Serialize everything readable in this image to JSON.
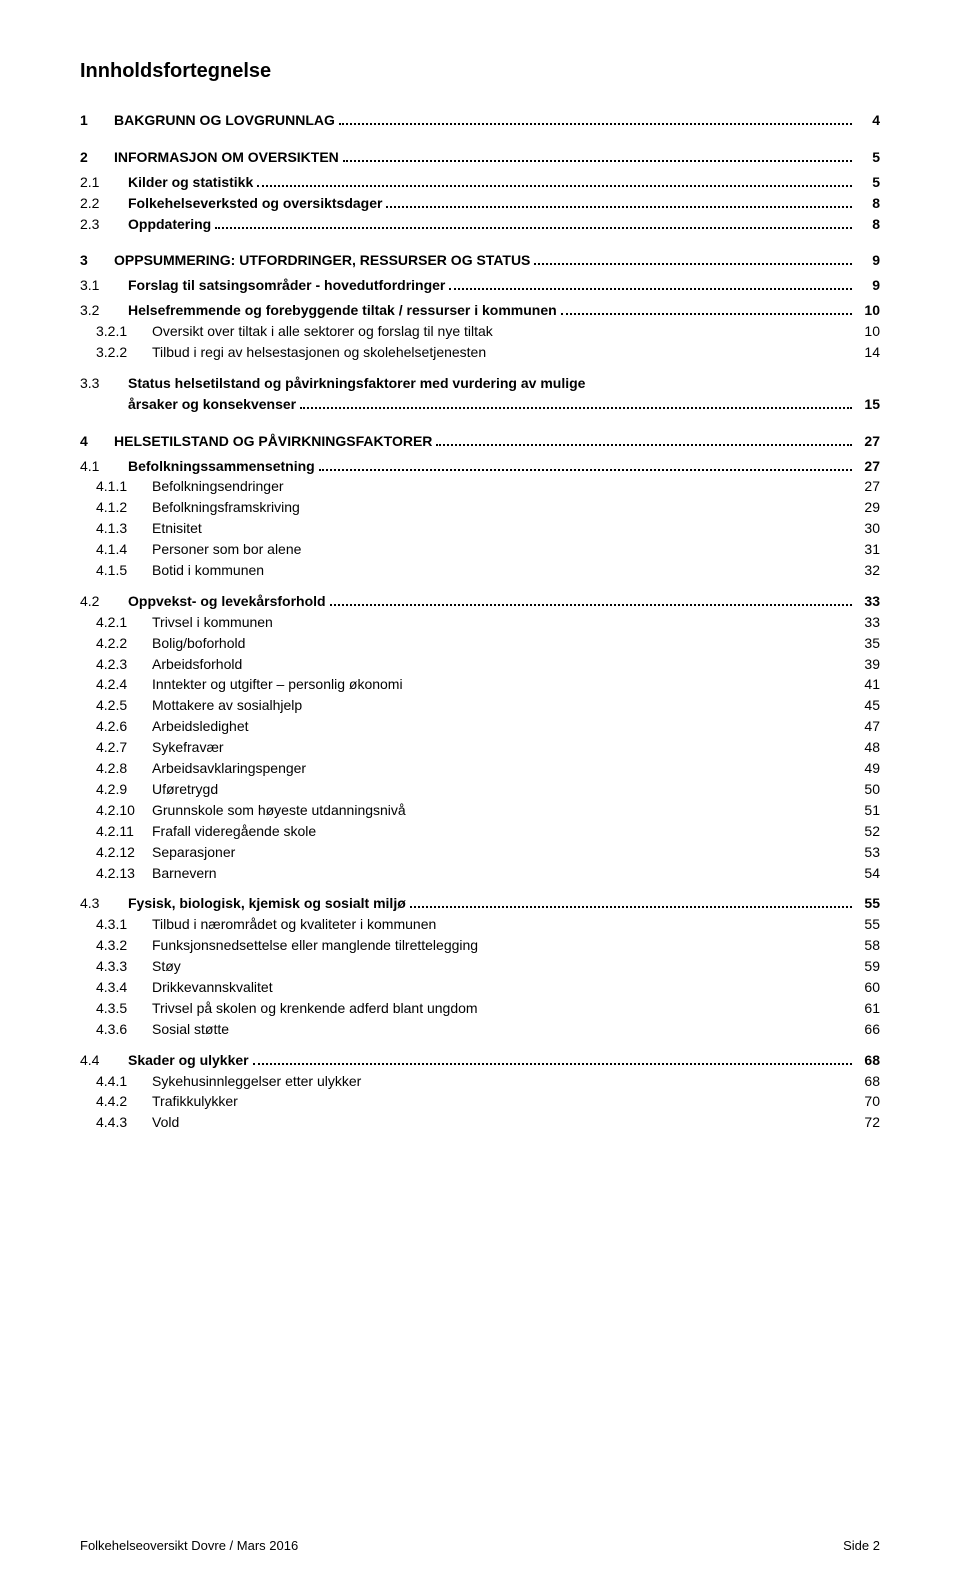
{
  "doc_title": "Innholdsfortegnelse",
  "entries": [
    {
      "level": 1,
      "num": "1",
      "label": "BAKGRUNN OG LOVGRUNNLAG",
      "page": "4",
      "leader": true,
      "bold": true,
      "gap_before": 0,
      "gap_after": 16
    },
    {
      "level": 1,
      "num": "2",
      "label": "INFORMASJON OM OVERSIKTEN",
      "page": "5",
      "leader": true,
      "bold": true,
      "gap_before": 0,
      "gap_after": 4
    },
    {
      "level": 2,
      "num": "2.1",
      "label": "Kilder og statistikk",
      "page": "5",
      "leader": true,
      "bold": true
    },
    {
      "level": 2,
      "num": "2.2",
      "label": "Folkehelseverksted og oversiktsdager",
      "page": "8",
      "leader": true,
      "bold": true
    },
    {
      "level": 2,
      "num": "2.3",
      "label": "Oppdatering",
      "page": "8",
      "leader": true,
      "bold": true,
      "gap_after": 16
    },
    {
      "level": 1,
      "num": "3",
      "label": "OPPSUMMERING: UTFORDRINGER, RESSURSER OG STATUS",
      "page": "9",
      "leader": true,
      "bold": true,
      "gap_after": 4
    },
    {
      "level": 2,
      "num": "3.1",
      "label": "Forslag til satsingsområder - hovedutfordringer",
      "page": "9",
      "leader": true,
      "bold": true,
      "gap_after": 4
    },
    {
      "level": 2,
      "num": "3.2",
      "label": "Helsefremmende og forebyggende tiltak / ressurser i kommunen",
      "page": "10",
      "leader": true,
      "bold": true
    },
    {
      "level": 3,
      "num": "3.2.1",
      "label": "Oversikt over tiltak i alle sektorer og forslag til nye tiltak",
      "page": "10",
      "leader": false
    },
    {
      "level": 3,
      "num": "3.2.2",
      "label": "Tilbud i regi av helsestasjonen og skolehelsetjenesten",
      "page": "14",
      "leader": false,
      "gap_after": 10
    },
    {
      "level": 2,
      "num": "3.3",
      "label": "Status helsetilstand og påvirkningsfaktorer med vurdering av mulige årsaker og konsekvenser",
      "page": "15",
      "leader": true,
      "bold": true,
      "wrap": true,
      "gap_after": 16
    },
    {
      "level": 1,
      "num": "4",
      "label": "HELSETILSTAND OG PÅVIRKNINGSFAKTORER",
      "page": "27",
      "leader": true,
      "bold": true,
      "gap_after": 4
    },
    {
      "level": 2,
      "num": "4.1",
      "label": "Befolkningssammensetning",
      "page": "27",
      "leader": true,
      "bold": true
    },
    {
      "level": 3,
      "num": "4.1.1",
      "label": "Befolkningsendringer",
      "page": "27",
      "leader": false
    },
    {
      "level": 3,
      "num": "4.1.2",
      "label": "Befolkningsframskriving",
      "page": "29",
      "leader": false
    },
    {
      "level": 3,
      "num": "4.1.3",
      "label": "Etnisitet",
      "page": "30",
      "leader": false
    },
    {
      "level": 3,
      "num": "4.1.4",
      "label": "Personer som bor alene",
      "page": "31",
      "leader": false
    },
    {
      "level": 3,
      "num": "4.1.5",
      "label": "Botid i kommunen",
      "page": "32",
      "leader": false,
      "gap_after": 10
    },
    {
      "level": 2,
      "num": "4.2",
      "label": "Oppvekst- og levekårsforhold",
      "page": "33",
      "leader": true,
      "bold": true
    },
    {
      "level": 3,
      "num": "4.2.1",
      "label": "Trivsel i kommunen",
      "page": "33",
      "leader": false
    },
    {
      "level": 3,
      "num": "4.2.2",
      "label": "Bolig/boforhold",
      "page": "35",
      "leader": false
    },
    {
      "level": 3,
      "num": "4.2.3",
      "label": "Arbeidsforhold",
      "page": "39",
      "leader": false
    },
    {
      "level": 3,
      "num": "4.2.4",
      "label": "Inntekter og utgifter – personlig økonomi",
      "page": "41",
      "leader": false
    },
    {
      "level": 3,
      "num": "4.2.5",
      "label": "Mottakere av sosialhjelp",
      "page": "45",
      "leader": false
    },
    {
      "level": 3,
      "num": "4.2.6",
      "label": "Arbeidsledighet",
      "page": "47",
      "leader": false
    },
    {
      "level": 3,
      "num": "4.2.7",
      "label": "Sykefravær",
      "page": "48",
      "leader": false
    },
    {
      "level": 3,
      "num": "4.2.8",
      "label": "Arbeidsavklaringspenger",
      "page": "49",
      "leader": false
    },
    {
      "level": 3,
      "num": "4.2.9",
      "label": "Uføretrygd",
      "page": "50",
      "leader": false
    },
    {
      "level": 3,
      "num": "4.2.10",
      "label": "Grunnskole som høyeste utdanningsnivå",
      "page": "51",
      "leader": false
    },
    {
      "level": 3,
      "num": "4.2.11",
      "label": "Frafall videregående skole",
      "page": "52",
      "leader": false
    },
    {
      "level": 3,
      "num": "4.2.12",
      "label": "Separasjoner",
      "page": "53",
      "leader": false
    },
    {
      "level": 3,
      "num": "4.2.13",
      "label": "Barnevern",
      "page": "54",
      "leader": false,
      "gap_after": 10
    },
    {
      "level": 2,
      "num": "4.3",
      "label": "Fysisk, biologisk, kjemisk og sosialt miljø",
      "page": "55",
      "leader": true,
      "bold": true
    },
    {
      "level": 3,
      "num": "4.3.1",
      "label": "Tilbud i nærområdet og kvaliteter i kommunen",
      "page": "55",
      "leader": false
    },
    {
      "level": 3,
      "num": "4.3.2",
      "label": "Funksjonsnedsettelse eller manglende tilrettelegging",
      "page": "58",
      "leader": false
    },
    {
      "level": 3,
      "num": "4.3.3",
      "label": "Støy",
      "page": "59",
      "leader": false
    },
    {
      "level": 3,
      "num": "4.3.4",
      "label": "Drikkevannskvalitet",
      "page": "60",
      "leader": false
    },
    {
      "level": 3,
      "num": "4.3.5",
      "label": "Trivsel på skolen og krenkende adferd blant ungdom",
      "page": "61",
      "leader": false
    },
    {
      "level": 3,
      "num": "4.3.6",
      "label": "Sosial støtte",
      "page": "66",
      "leader": false,
      "gap_after": 10
    },
    {
      "level": 2,
      "num": "4.4",
      "label": "Skader og ulykker",
      "page": "68",
      "leader": true,
      "bold": true
    },
    {
      "level": 3,
      "num": "4.4.1",
      "label": "Sykehusinnleggelser etter ulykker",
      "page": "68",
      "leader": false
    },
    {
      "level": 3,
      "num": "4.4.2",
      "label": "Trafikkulykker",
      "page": "70",
      "leader": false
    },
    {
      "level": 3,
      "num": "4.4.3",
      "label": "Vold",
      "page": "72",
      "leader": false
    }
  ],
  "footer": {
    "left": "Folkehelseoversikt Dovre / Mars 2016",
    "right": "Side 2"
  }
}
